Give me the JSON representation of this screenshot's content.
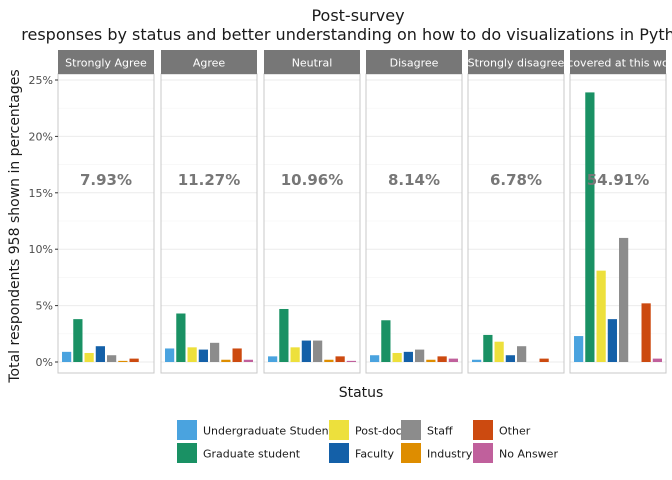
{
  "chart_data": {
    "type": "bar",
    "title": "Post-survey",
    "subtitle": "responses by status and better understanding on how to do visualizations in Python",
    "xlabel": "Status",
    "ylabel": "Total respondents 958 shown in percentages",
    "ylim": [
      -1,
      25.3
    ],
    "yticks": [
      0,
      5,
      10,
      15,
      20,
      25
    ],
    "ytick_labels": [
      "0%",
      "5%",
      "10%",
      "15%",
      "20%",
      "25%"
    ],
    "grid": true,
    "legend_position": "bottom",
    "colors": {
      "Undergraduate Student": "#4aa3df",
      "Graduate student": "#1a9164",
      "Post-doc": "#ede03c",
      "Faculty": "#1460a8",
      "Staff": "#8c8c8c",
      "Industry": "#de8d00",
      "Other": "#cc4a10",
      "No Answer": "#c0609c"
    },
    "legend": {
      "items": [
        "Undergraduate Student",
        "Graduate student",
        "Post-doc",
        "Faculty",
        "Staff",
        "Industry",
        "Other",
        "No Answer"
      ]
    },
    "categories": [
      "Undergraduate Student",
      "Graduate student",
      "Post-doc",
      "Faculty",
      "Staff",
      "Industry",
      "Other",
      "No Answer"
    ],
    "facets": [
      {
        "label": "Strongly Agree",
        "total_label": "7.93%",
        "values": [
          0.9,
          3.8,
          0.8,
          1.4,
          0.6,
          0.1,
          0.3,
          0
        ]
      },
      {
        "label": "Agree",
        "total_label": "11.27%",
        "values": [
          1.2,
          4.3,
          1.3,
          1.1,
          1.7,
          0.2,
          1.2,
          0.2
        ]
      },
      {
        "label": "Neutral",
        "total_label": "10.96%",
        "values": [
          0.5,
          4.7,
          1.3,
          1.9,
          1.9,
          0.2,
          0.5,
          0.1
        ]
      },
      {
        "label": "Disagree",
        "total_label": "8.14%",
        "values": [
          0.6,
          3.7,
          0.8,
          0.9,
          1.1,
          0.2,
          0.5,
          0.3
        ]
      },
      {
        "label": "Strongly disagree",
        "total_label": "6.78%",
        "values": [
          0.2,
          2.4,
          1.8,
          0.6,
          1.4,
          0,
          0.3,
          0
        ]
      },
      {
        "label": "covered at this wo",
        "total_label": "54.91%",
        "values": [
          2.3,
          23.9,
          8.1,
          3.8,
          11.0,
          0,
          5.2,
          0.3
        ]
      }
    ]
  }
}
